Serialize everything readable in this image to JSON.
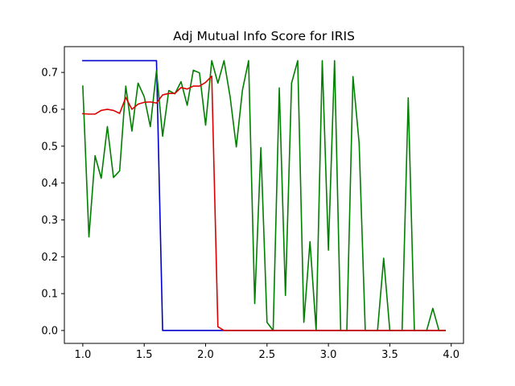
{
  "chart_data": {
    "type": "line",
    "title": "Adj Mutual Info Score for IRIS",
    "xlabel": "",
    "ylabel": "",
    "xlim": [
      0.85,
      4.1
    ],
    "ylim": [
      -0.035,
      0.77
    ],
    "xticks": [
      1.0,
      1.5,
      2.0,
      2.5,
      3.0,
      3.5,
      4.0
    ],
    "xtick_labels": [
      "1.0",
      "1.5",
      "2.0",
      "2.5",
      "3.0",
      "3.5",
      "4.0"
    ],
    "yticks": [
      0.0,
      0.1,
      0.2,
      0.3,
      0.4,
      0.5,
      0.6,
      0.7
    ],
    "ytick_labels": [
      "0.0",
      "0.1",
      "0.2",
      "0.3",
      "0.4",
      "0.5",
      "0.6",
      "0.7"
    ],
    "grid": false,
    "series": [
      {
        "color": "#0000cc",
        "x": [
          1.0,
          1.6,
          1.65,
          3.95
        ],
        "y": [
          0.732,
          0.732,
          0.0,
          0.0
        ]
      },
      {
        "color": "#008000",
        "x": [
          1.0,
          1.05,
          1.1,
          1.15,
          1.2,
          1.25,
          1.3,
          1.35,
          1.4,
          1.45,
          1.5,
          1.55,
          1.6,
          1.65,
          1.7,
          1.75,
          1.8,
          1.85,
          1.9,
          1.95,
          2.0,
          2.05,
          2.1,
          2.15,
          2.2,
          2.25,
          2.3,
          2.35,
          2.4,
          2.45,
          2.5,
          2.55,
          2.6,
          2.65,
          2.7,
          2.75,
          2.8,
          2.85,
          2.9,
          2.95,
          3.0,
          3.05,
          3.1,
          3.15,
          3.2,
          3.25,
          3.3,
          3.35,
          3.4,
          3.45,
          3.5,
          3.55,
          3.6,
          3.65,
          3.7,
          3.75,
          3.8,
          3.85,
          3.9,
          3.95
        ],
        "y": [
          0.663,
          0.254,
          0.474,
          0.413,
          0.553,
          0.415,
          0.433,
          0.663,
          0.541,
          0.671,
          0.634,
          0.553,
          0.705,
          0.527,
          0.651,
          0.642,
          0.675,
          0.611,
          0.706,
          0.699,
          0.557,
          0.732,
          0.671,
          0.732,
          0.633,
          0.498,
          0.652,
          0.732,
          0.073,
          0.496,
          0.022,
          0.0,
          0.658,
          0.095,
          0.671,
          0.732,
          0.022,
          0.241,
          0.0,
          0.732,
          0.218,
          0.732,
          0.0,
          0.0,
          0.689,
          0.509,
          0.0,
          0.0,
          0.0,
          0.196,
          0.0,
          0.0,
          0.0,
          0.631,
          0.0,
          0.0,
          0.0,
          0.06,
          0.0,
          0.0
        ]
      },
      {
        "color": "#dd0000",
        "x": [
          1.0,
          1.05,
          1.1,
          1.15,
          1.2,
          1.25,
          1.3,
          1.35,
          1.4,
          1.45,
          1.5,
          1.55,
          1.6,
          1.65,
          1.7,
          1.75,
          1.8,
          1.85,
          1.9,
          1.95,
          2.0,
          2.05,
          2.1,
          2.15,
          2.2,
          2.25,
          2.3,
          2.35,
          2.4,
          2.45,
          2.5,
          2.55,
          2.6,
          2.65,
          2.7,
          2.75,
          2.8,
          2.85,
          2.9,
          2.95,
          3.0,
          3.05,
          3.1,
          3.15,
          3.2,
          3.25,
          3.3,
          3.35,
          3.4,
          3.45,
          3.5,
          3.55,
          3.6,
          3.65,
          3.7,
          3.75,
          3.8,
          3.85,
          3.9,
          3.95
        ],
        "y": [
          0.588,
          0.587,
          0.587,
          0.597,
          0.6,
          0.597,
          0.589,
          0.632,
          0.6,
          0.614,
          0.619,
          0.62,
          0.617,
          0.639,
          0.643,
          0.643,
          0.659,
          0.655,
          0.663,
          0.663,
          0.673,
          0.69,
          0.01,
          0.0,
          0.0,
          0.0,
          0.0,
          0.0,
          0.0,
          0.0,
          0.0,
          0.0,
          0.0,
          0.0,
          0.0,
          0.0,
          0.0,
          0.0,
          0.0,
          0.0,
          0.0,
          0.0,
          0.0,
          0.0,
          0.0,
          0.0,
          0.0,
          0.0,
          0.0,
          0.0,
          0.0,
          0.0,
          0.0,
          0.0,
          0.0,
          0.0,
          0.0,
          0.0,
          0.0,
          0.0
        ]
      }
    ]
  }
}
